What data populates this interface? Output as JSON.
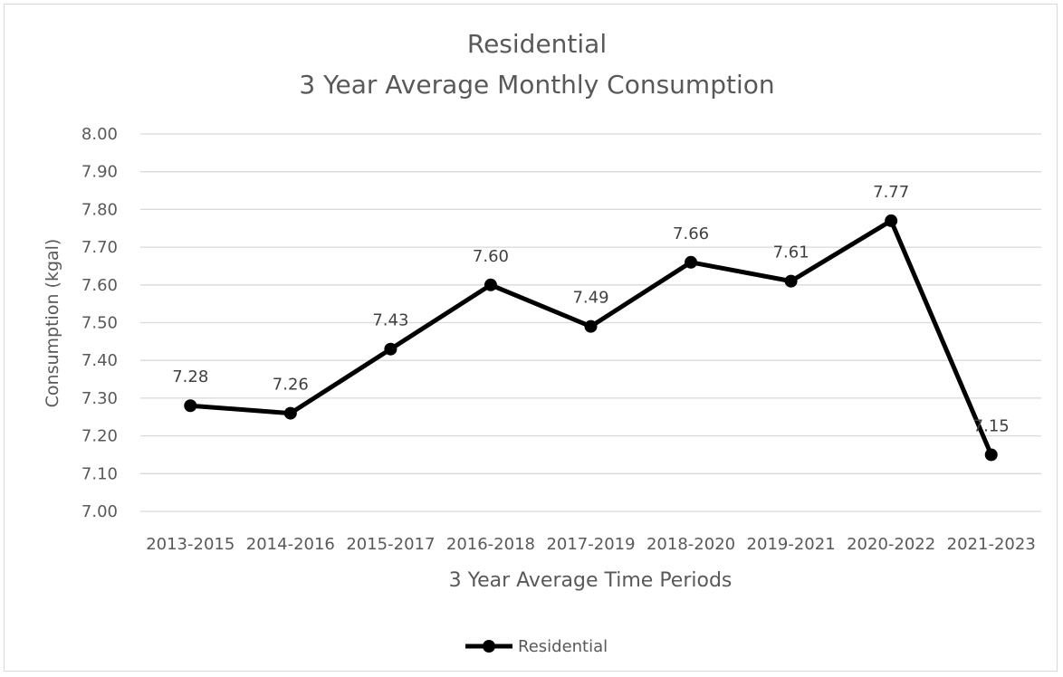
{
  "chart_data": {
    "type": "line",
    "title_lines": [
      "Residential",
      "3 Year Average Monthly Consumption"
    ],
    "xlabel": "3 Year Average Time Periods",
    "ylabel": "Consumption (kgal)",
    "categories": [
      "2013-2015",
      "2014-2016",
      "2015-2017",
      "2016-2018",
      "2017-2019",
      "2018-2020",
      "2019-2021",
      "2020-2022",
      "2021-2023"
    ],
    "series": [
      {
        "name": "Residential",
        "values": [
          7.28,
          7.26,
          7.43,
          7.6,
          7.49,
          7.66,
          7.61,
          7.77,
          7.15
        ],
        "labels": [
          "7.28",
          "7.26",
          "7.43",
          "7.60",
          "7.49",
          "7.66",
          "7.61",
          "7.77",
          "7.15"
        ],
        "color": "#000000"
      }
    ],
    "ylim": [
      7.0,
      8.0
    ],
    "yticks": [
      "7.00",
      "7.10",
      "7.20",
      "7.30",
      "7.40",
      "7.50",
      "7.60",
      "7.70",
      "7.80",
      "7.90",
      "8.00"
    ],
    "grid": true,
    "legend_position": "bottom"
  }
}
